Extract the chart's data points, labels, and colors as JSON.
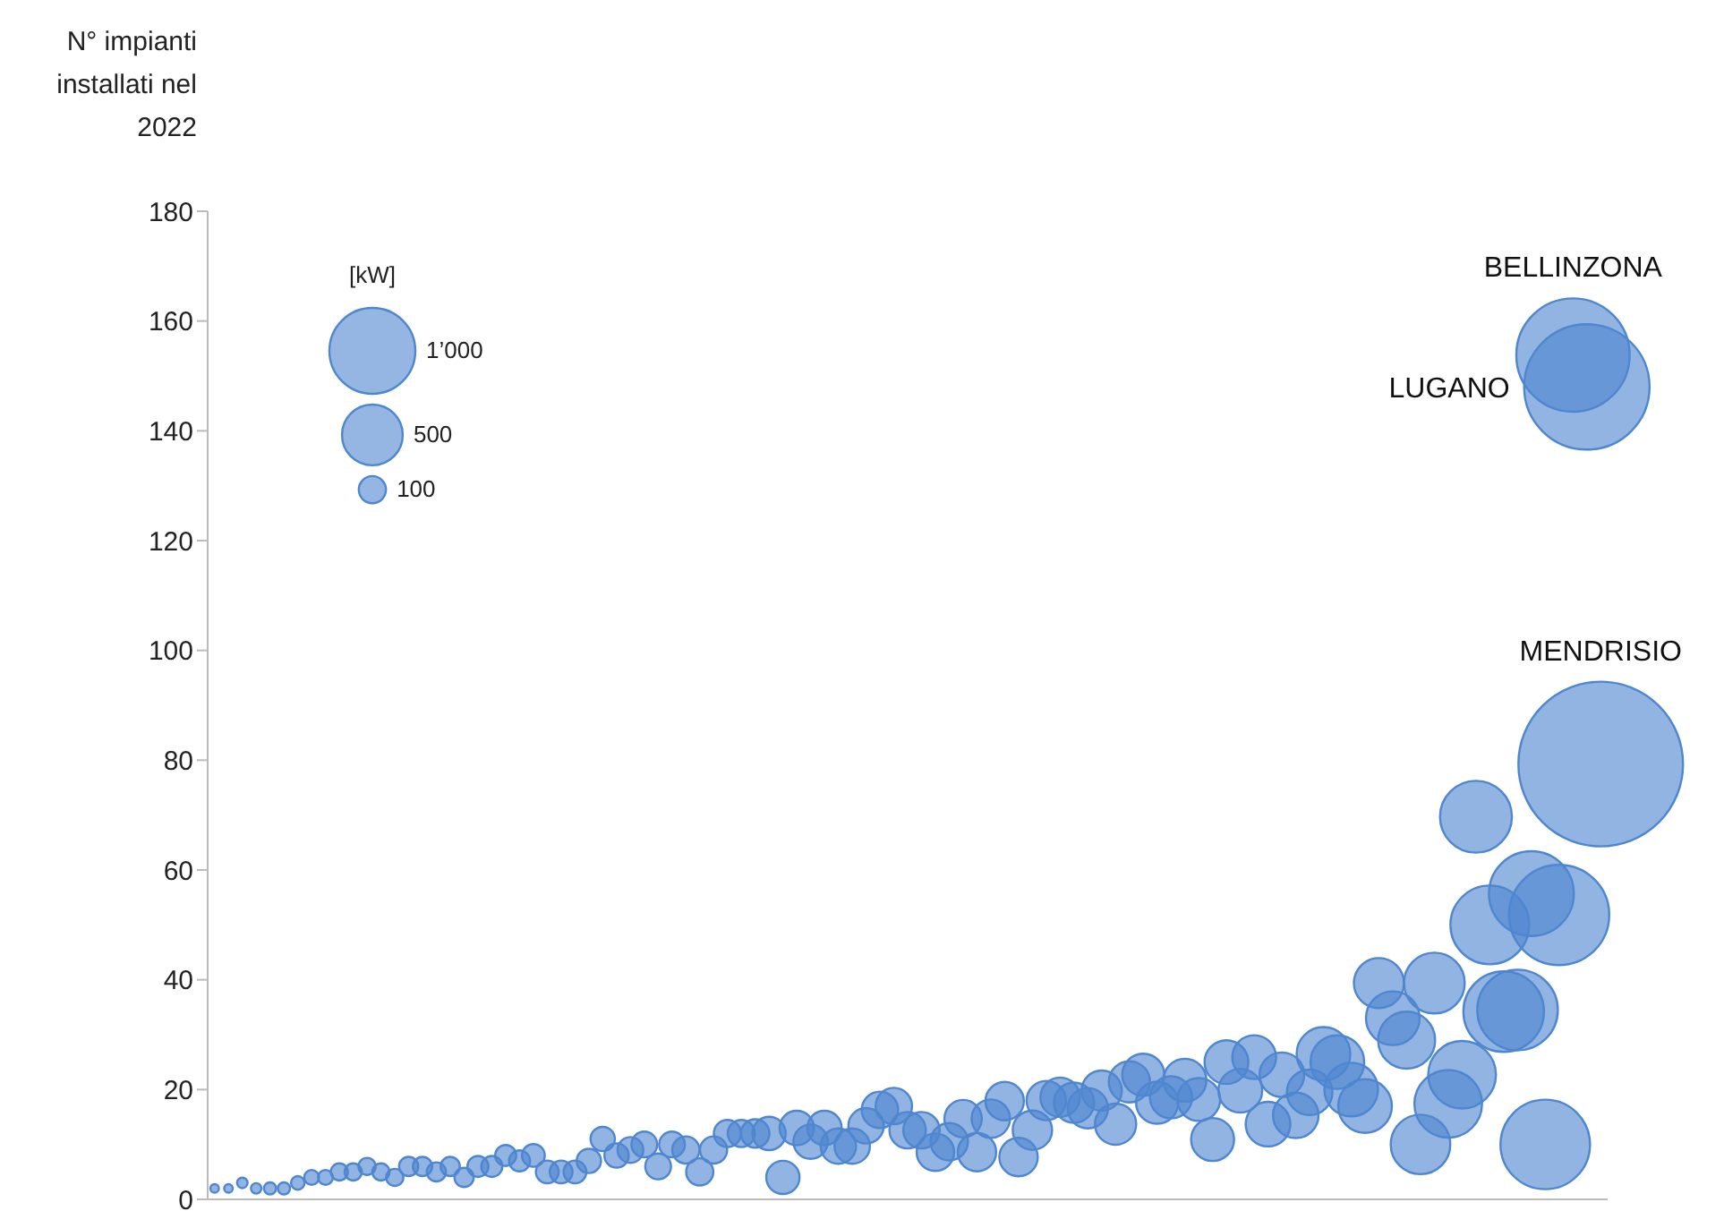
{
  "chart_data": {
    "type": "bubble",
    "ylabel": "N° impianti installati nel 2022",
    "legend_title": "[kW]",
    "categories": [
      null,
      null,
      null,
      null,
      null,
      null,
      null,
      null,
      null,
      null,
      null,
      null,
      null,
      null,
      null,
      null,
      null,
      null,
      null,
      null,
      null,
      null,
      null,
      null,
      null,
      null,
      null,
      null,
      null,
      null,
      null,
      null,
      null,
      null,
      null,
      null,
      null,
      null,
      null,
      null,
      null,
      null,
      null,
      null,
      null,
      null,
      null,
      null,
      null,
      null,
      null,
      null,
      null,
      null,
      null,
      null,
      null,
      null,
      null,
      null,
      null,
      null,
      null,
      null,
      null,
      null,
      null,
      null,
      null,
      null,
      null,
      null,
      null,
      null,
      null,
      null,
      null,
      null,
      null,
      null,
      null,
      null,
      null,
      null,
      null,
      null,
      null,
      null,
      null,
      null,
      null,
      null,
      null,
      null,
      null,
      null,
      null,
      null,
      null,
      null,
      null
    ],
    "values": [
      2,
      2,
      3,
      2,
      2,
      2,
      3,
      4,
      4,
      5,
      5,
      6,
      5,
      4,
      6,
      6,
      5,
      6,
      4,
      6,
      6,
      8,
      7,
      8,
      5,
      5,
      5,
      7,
      11,
      8,
      9,
      10,
      6,
      10,
      9,
      5,
      9,
      12,
      12,
      12,
      12,
      4,
      13,
      10.5,
      13,
      9.7,
      9.7,
      13.4,
      16.3,
      17,
      12.6,
      12.6,
      8.6,
      10.5,
      14.7,
      8.6,
      14.7,
      17.9,
      7.7,
      12.6,
      18,
      18.6,
      17.6,
      16.6,
      19.8,
      13.7,
      21.4,
      22.7,
      17.6,
      18.6,
      21.7,
      18.2,
      10.9,
      25,
      19.8,
      25.9,
      13.7,
      22.7,
      15.3,
      19.5,
      26.5,
      25,
      20,
      17,
      39.4,
      33,
      29,
      10,
      39.4,
      17.4,
      22.7,
      69.7,
      50,
      34.2,
      34.5,
      55.7,
      10,
      51.8,
      153.8,
      148,
      79.3
    ],
    "sizes": [
      10,
      10,
      15,
      15,
      20,
      20,
      25,
      30,
      30,
      40,
      40,
      40,
      40,
      40,
      50,
      50,
      50,
      50,
      50,
      60,
      60,
      60,
      60,
      70,
      70,
      70,
      70,
      80,
      80,
      80,
      90,
      90,
      90,
      90,
      100,
      100,
      100,
      100,
      100,
      110,
      150,
      150,
      160,
      160,
      160,
      170,
      170,
      170,
      180,
      180,
      180,
      180,
      190,
      190,
      190,
      200,
      200,
      200,
      200,
      210,
      210,
      210,
      220,
      220,
      220,
      230,
      230,
      240,
      240,
      240,
      250,
      250,
      250,
      260,
      260,
      260,
      270,
      270,
      280,
      280,
      390,
      390,
      390,
      390,
      340,
      390,
      440,
      480,
      500,
      620,
      620,
      700,
      840,
      880,
      880,
      975,
      1085,
      1360,
      1740,
      2130,
      3670
    ],
    "size_legend": [
      {
        "value": 100,
        "label": "100"
      },
      {
        "value": 500,
        "label": "500"
      },
      {
        "value": 1000,
        "label": "1’000"
      }
    ],
    "value_labels": [
      null,
      null,
      null,
      null,
      null,
      null,
      null,
      null,
      null,
      null,
      null,
      null,
      null,
      null,
      null,
      null,
      null,
      null,
      null,
      null,
      null,
      null,
      null,
      null,
      null,
      null,
      null,
      null,
      null,
      null,
      null,
      null,
      null,
      null,
      null,
      null,
      null,
      null,
      null,
      null,
      null,
      null,
      null,
      null,
      null,
      null,
      null,
      null,
      null,
      null,
      null,
      null,
      null,
      null,
      null,
      null,
      null,
      null,
      null,
      null,
      null,
      null,
      null,
      null,
      null,
      null,
      null,
      null,
      null,
      null,
      null,
      null,
      null,
      null,
      null,
      null,
      null,
      null,
      null,
      null,
      null,
      null,
      null,
      null,
      null,
      null,
      null,
      null,
      null,
      null,
      null,
      null,
      null,
      null,
      null,
      null,
      null,
      null,
      "BELLINZONA",
      "LUGANO",
      "MENDRISIO"
    ],
    "color": "#4f86d0",
    "ylim": [
      0,
      180
    ],
    "yticks": [
      0,
      20,
      40,
      60,
      80,
      100,
      120,
      140,
      160,
      180
    ],
    "tick_labels": "y"
  }
}
